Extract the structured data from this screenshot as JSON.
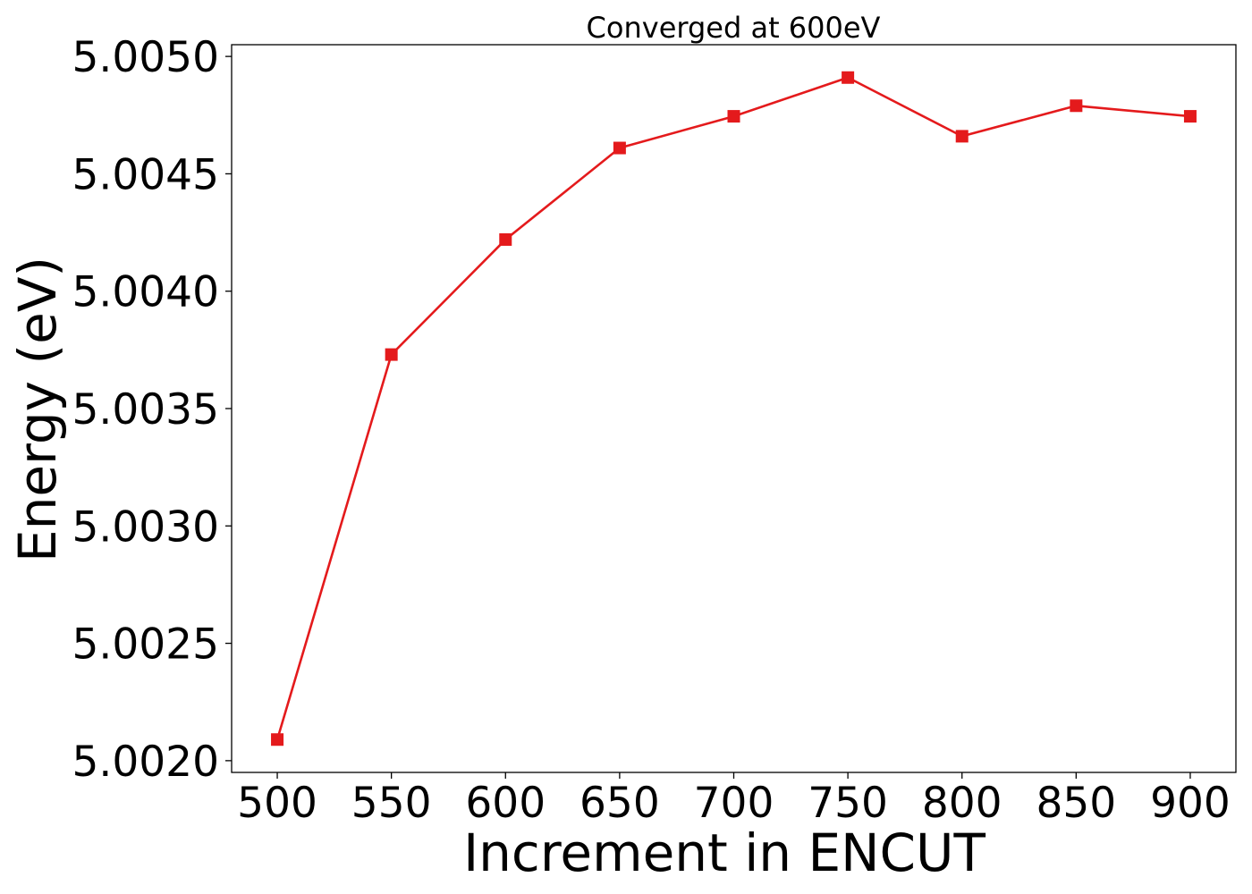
{
  "chart_data": {
    "type": "line",
    "title": "Converged at 600eV",
    "xlabel": "Increment in ENCUT",
    "ylabel": "Energy (eV)",
    "x": [
      500,
      550,
      600,
      650,
      700,
      750,
      800,
      850,
      900
    ],
    "series": [
      {
        "values": [
          5.00209,
          5.00373,
          5.00422,
          5.00461,
          5.004745,
          5.00491,
          5.00466,
          5.00479,
          5.004745
        ],
        "color": "#e41a1c",
        "marker": "square"
      }
    ],
    "xlim": [
      480,
      920
    ],
    "ylim": [
      5.00195,
      5.00505
    ],
    "xticks": [
      "500",
      "550",
      "600",
      "650",
      "700",
      "750",
      "800",
      "850",
      "900"
    ],
    "yticks": [
      "5.0020",
      "5.0025",
      "5.0030",
      "5.0035",
      "5.0040",
      "5.0045",
      "5.0050"
    ],
    "grid": false
  }
}
